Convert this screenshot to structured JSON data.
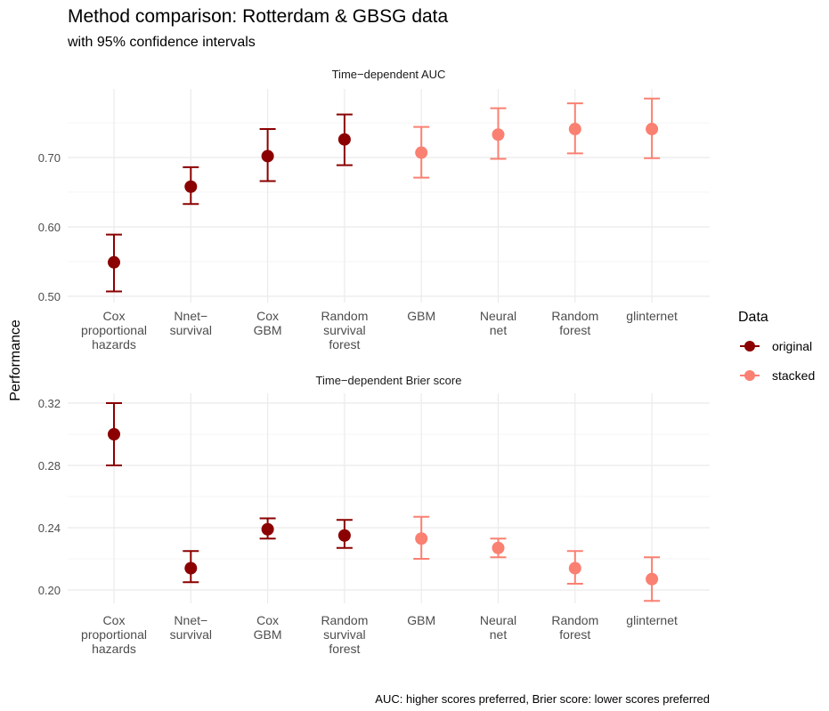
{
  "title": "Method comparison: Rotterdam & GBSG data",
  "subtitle": "with 95% confidence intervals",
  "ylabel": "Performance",
  "caption": "AUC: higher scores preferred, Brier score: lower scores preferred",
  "legend": {
    "title": "Data",
    "entries": [
      {
        "name": "original",
        "color": "#8B0000"
      },
      {
        "name": "stacked",
        "color": "#FA8072"
      }
    ]
  },
  "chart_data": [
    {
      "type": "scatter",
      "title": "Time−dependent AUC",
      "categories": [
        [
          "Cox",
          "proportional",
          "hazards"
        ],
        [
          "Nnet−",
          "survival"
        ],
        [
          "Cox",
          "GBM"
        ],
        [
          "Random",
          "survival",
          "forest"
        ],
        [
          "GBM"
        ],
        [
          "Neural",
          "net"
        ],
        [
          "Random",
          "forest"
        ],
        [
          "glinternet"
        ]
      ],
      "groups": [
        "original",
        "original",
        "original",
        "original",
        "stacked",
        "stacked",
        "stacked",
        "stacked"
      ],
      "values": [
        0.549,
        0.658,
        0.702,
        0.726,
        0.707,
        0.733,
        0.741,
        0.741
      ],
      "lower": [
        0.507,
        0.633,
        0.666,
        0.689,
        0.671,
        0.698,
        0.706,
        0.699
      ],
      "upper": [
        0.589,
        0.686,
        0.741,
        0.762,
        0.744,
        0.771,
        0.778,
        0.785
      ],
      "ylim": [
        0.5,
        0.785
      ],
      "yticks": [
        0.5,
        0.6,
        0.7
      ],
      "yticklabels": [
        "0.50",
        "0.60",
        "0.70"
      ]
    },
    {
      "type": "scatter",
      "title": "Time−dependent Brier score",
      "categories": [
        [
          "Cox",
          "proportional",
          "hazards"
        ],
        [
          "Nnet−",
          "survival"
        ],
        [
          "Cox",
          "GBM"
        ],
        [
          "Random",
          "survival",
          "forest"
        ],
        [
          "GBM"
        ],
        [
          "Neural",
          "net"
        ],
        [
          "Random",
          "forest"
        ],
        [
          "glinternet"
        ]
      ],
      "groups": [
        "original",
        "original",
        "original",
        "original",
        "stacked",
        "stacked",
        "stacked",
        "stacked"
      ],
      "values": [
        0.3,
        0.214,
        0.239,
        0.235,
        0.233,
        0.227,
        0.214,
        0.207
      ],
      "lower": [
        0.28,
        0.205,
        0.233,
        0.227,
        0.22,
        0.221,
        0.204,
        0.193
      ],
      "upper": [
        0.32,
        0.225,
        0.246,
        0.245,
        0.247,
        0.233,
        0.225,
        0.221
      ],
      "ylim": [
        0.193,
        0.32
      ],
      "yticks": [
        0.2,
        0.24,
        0.28,
        0.32
      ],
      "yticklabels": [
        "0.20",
        "0.24",
        "0.28",
        "0.32"
      ]
    }
  ]
}
